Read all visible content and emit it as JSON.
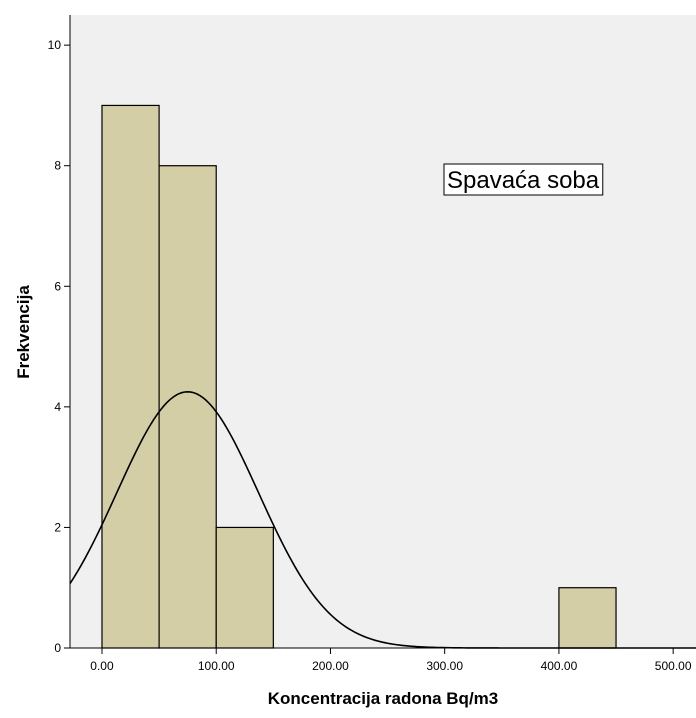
{
  "chart_data": {
    "type": "bar",
    "title": "",
    "xlabel": "Koncentracija radona Bq/m3",
    "ylabel": "Frekvencija",
    "annotation": "Spavaća soba",
    "xlim": [
      -28,
      520
    ],
    "ylim": [
      0,
      10.5
    ],
    "bins": [
      {
        "x0": 0,
        "x1": 50,
        "value": 9
      },
      {
        "x0": 50,
        "x1": 100,
        "value": 8
      },
      {
        "x0": 100,
        "x1": 150,
        "value": 2
      },
      {
        "x0": 150,
        "x1": 200,
        "value": 0
      },
      {
        "x0": 200,
        "x1": 250,
        "value": 0
      },
      {
        "x0": 250,
        "x1": 300,
        "value": 0
      },
      {
        "x0": 300,
        "x1": 350,
        "value": 0
      },
      {
        "x0": 350,
        "x1": 400,
        "value": 0
      },
      {
        "x0": 400,
        "x1": 450,
        "value": 1
      }
    ],
    "x_ticks": [
      {
        "value": 0,
        "label": "0.00"
      },
      {
        "value": 100,
        "label": "100.00"
      },
      {
        "value": 200,
        "label": "200.00"
      },
      {
        "value": 300,
        "label": "300.00"
      },
      {
        "value": 400,
        "label": "400.00"
      },
      {
        "value": 500,
        "label": "500.00"
      }
    ],
    "y_ticks": [
      {
        "value": 0,
        "label": "0"
      },
      {
        "value": 2,
        "label": "2"
      },
      {
        "value": 4,
        "label": "4"
      },
      {
        "value": 6,
        "label": "6"
      },
      {
        "value": 8,
        "label": "8"
      },
      {
        "value": 10,
        "label": "10"
      }
    ],
    "normal_curve": {
      "mean": 75,
      "sd": 62,
      "scale": 4.25
    },
    "colors": {
      "plot_background": "#f0f0f0",
      "bar_fill": "#d3cea5",
      "bar_stroke": "#000000",
      "curve": "#000000"
    },
    "grid": false,
    "legend": "none"
  }
}
